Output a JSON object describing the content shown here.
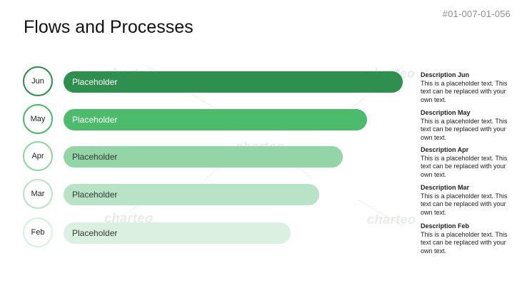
{
  "slide": {
    "id": "#01-007-01-056",
    "title": "Flows and Processes",
    "watermark": "charteo"
  },
  "rows": [
    {
      "month": "Jun",
      "bar_label": "Placeholder",
      "desc_title": "Description Jun",
      "desc_body": "This is a placeholder text. This text can be replaced with your own text."
    },
    {
      "month": "May",
      "bar_label": "Placeholder",
      "desc_title": "Description May",
      "desc_body": "This is a placeholder text. This text can be replaced with your own text."
    },
    {
      "month": "Apr",
      "bar_label": "Placeholder",
      "desc_title": "Description Apr",
      "desc_body": "This is a placeholder text. This text can be replaced with your own text."
    },
    {
      "month": "Mar",
      "bar_label": "Placeholder",
      "desc_title": "Description Mar",
      "desc_body": "This is a placeholder text. This text can be replaced with your own text."
    },
    {
      "month": "Feb",
      "bar_label": "Placeholder",
      "desc_title": "Description Feb",
      "desc_body": "This is a placeholder text. This text can be replaced with your own text."
    }
  ],
  "colors": {
    "green_1": "#2f8f4e",
    "green_2": "#4cbb6c",
    "green_3": "#93d5a7",
    "green_4": "#b8e3c6",
    "green_5": "#dcf0e2"
  }
}
